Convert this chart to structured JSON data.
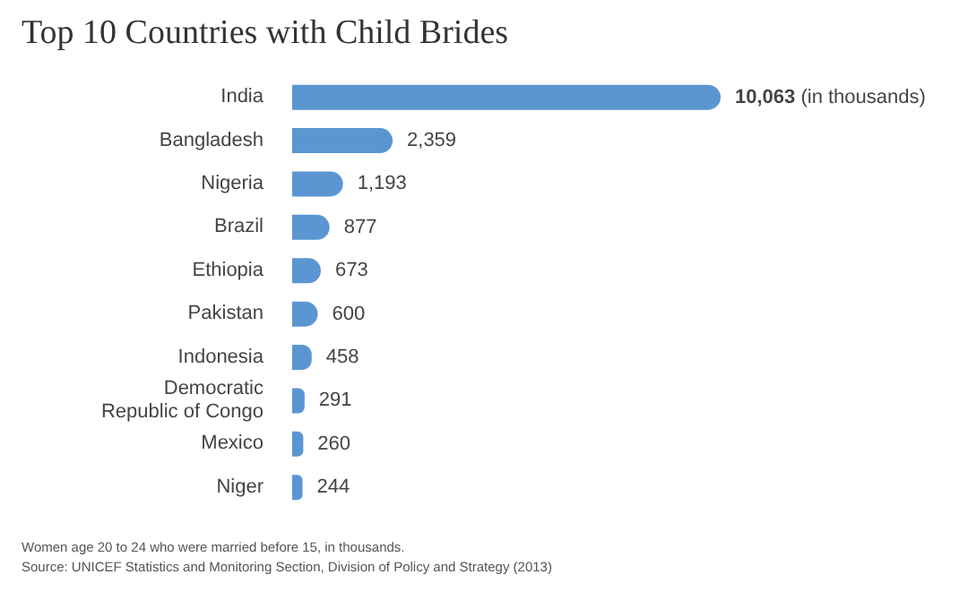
{
  "chart_data": {
    "type": "bar",
    "orientation": "horizontal",
    "title": "Top 10 Countries with Child Brides",
    "categories": [
      "India",
      "Bangladesh",
      "Nigeria",
      "Brazil",
      "Ethiopia",
      "Pakistan",
      "Indonesia",
      "Democratic Republic of Congo",
      "Mexico",
      "Niger"
    ],
    "values": [
      10063,
      2359,
      1193,
      877,
      673,
      600,
      458,
      291,
      260,
      244
    ],
    "value_labels": [
      "10,063 (in thousands)",
      "2,359",
      "1,193",
      "877",
      "673",
      "600",
      "458",
      "291",
      "260",
      "244"
    ],
    "color": "#5b96d3",
    "annotations": [
      "Women age 20 to 24 who were married before 15, in thousands.",
      "Source: UNICEF Statistics and Monitoring Section, Division of Policy and Strategy (2013)"
    ]
  }
}
